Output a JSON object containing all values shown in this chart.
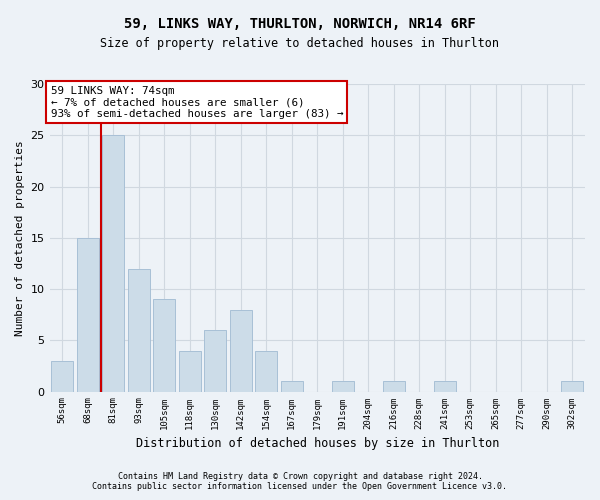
{
  "title1": "59, LINKS WAY, THURLTON, NORWICH, NR14 6RF",
  "title2": "Size of property relative to detached houses in Thurlton",
  "xlabel": "Distribution of detached houses by size in Thurlton",
  "ylabel": "Number of detached properties",
  "footer1": "Contains HM Land Registry data © Crown copyright and database right 2024.",
  "footer2": "Contains public sector information licensed under the Open Government Licence v3.0.",
  "annotation_title": "59 LINKS WAY: 74sqm",
  "annotation_line1": "← 7% of detached houses are smaller (6)",
  "annotation_line2": "93% of semi-detached houses are larger (83) →",
  "bar_values": [
    3,
    15,
    25,
    12,
    9,
    4,
    6,
    8,
    4,
    1,
    0,
    1,
    0,
    1,
    0,
    1,
    0,
    0,
    0,
    0,
    1
  ],
  "bar_labels": [
    "56sqm",
    "68sqm",
    "81sqm",
    "93sqm",
    "105sqm",
    "118sqm",
    "130sqm",
    "142sqm",
    "154sqm",
    "167sqm",
    "179sqm",
    "191sqm",
    "204sqm",
    "216sqm",
    "228sqm",
    "241sqm",
    "253sqm",
    "265sqm",
    "277sqm",
    "290sqm",
    "302sqm"
  ],
  "bar_color": "#ccdce8",
  "bar_edge_color": "#a8c0d6",
  "vline_color": "#cc0000",
  "annotation_box_edge": "#cc0000",
  "ylim": [
    0,
    30
  ],
  "yticks": [
    0,
    5,
    10,
    15,
    20,
    25,
    30
  ],
  "grid_color": "#d0d8e0",
  "bg_color": "#edf2f7",
  "figsize": [
    6.0,
    5.0
  ],
  "dpi": 100,
  "vline_pos": 1.5
}
